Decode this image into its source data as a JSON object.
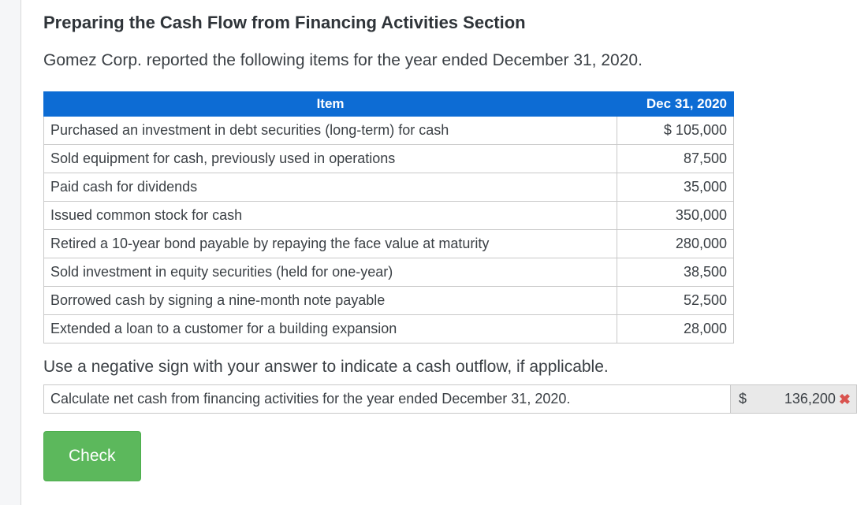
{
  "page": {
    "title": "Preparing the Cash Flow from Financing Activities Section",
    "intro": "Gomez Corp. reported the following items for the year ended December 31, 2020."
  },
  "table": {
    "headers": {
      "item": "Item",
      "date": "Dec 31, 2020"
    },
    "rows": [
      {
        "item": "Purchased an investment in debt securities (long-term) for cash",
        "value": "$ 105,000"
      },
      {
        "item": "Sold equipment for cash, previously used in operations",
        "value": "87,500"
      },
      {
        "item": "Paid cash for dividends",
        "value": "35,000"
      },
      {
        "item": "Issued common stock for cash",
        "value": "350,000"
      },
      {
        "item": "Retired a 10-year bond payable by repaying the face value at maturity",
        "value": "280,000"
      },
      {
        "item": "Sold investment in equity securities (held for one-year)",
        "value": "38,500"
      },
      {
        "item": "Borrowed cash by signing a nine-month note payable",
        "value": "52,500"
      },
      {
        "item": "Extended a loan to a customer for a building expansion",
        "value": "28,000"
      }
    ]
  },
  "note": "Use a negative sign with your answer to indicate a cash outflow, if applicable.",
  "answer": {
    "question": "Calculate net cash from financing activities for the year ended December 31, 2020.",
    "currency_symbol": "$",
    "value": "136,200",
    "incorrect_icon": "✖"
  },
  "check_button_label": "Check",
  "colors": {
    "header_blue": "#0d6cd4",
    "button_green": "#5cb85c",
    "error_red": "#d9534f",
    "answer_cell_gray": "#e9e9e9"
  }
}
